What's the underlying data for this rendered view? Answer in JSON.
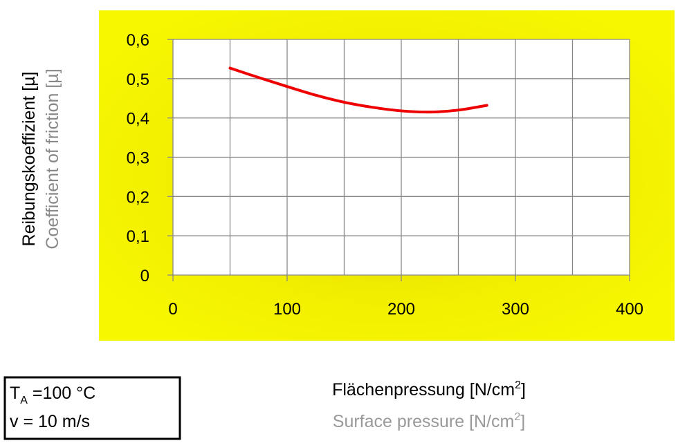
{
  "chart_data": {
    "type": "line",
    "x": [
      50,
      75,
      100,
      125,
      150,
      175,
      200,
      225,
      250,
      275
    ],
    "series": [
      {
        "name": "Reibungskoeffizient",
        "color": "#ee0000",
        "values": [
          0.527,
          0.503,
          0.48,
          0.458,
          0.44,
          0.427,
          0.418,
          0.415,
          0.42,
          0.432
        ]
      }
    ],
    "xlim": [
      0,
      400
    ],
    "xticks": [
      0,
      100,
      200,
      300,
      400
    ],
    "xminor": [
      50,
      150,
      250,
      350
    ],
    "ylim": [
      0,
      0.6
    ],
    "yticks": [
      0,
      {
        "value": 0.1,
        "label": "0,1"
      },
      {
        "value": 0.2,
        "label": "0,2"
      },
      {
        "value": 0.3,
        "label": "0,3"
      },
      {
        "value": 0.4,
        "label": "0,4"
      },
      {
        "value": 0.5,
        "label": "0,5"
      },
      {
        "value": 0.6,
        "label": "0,6"
      }
    ],
    "grid": true,
    "ylabel": "Reibungskoeffizient [µ]",
    "ylabel2": "Coefficient of friction [µ]",
    "xlabel": {
      "text": "Flächenpressung [N/cm",
      "sup": "2",
      "end": "]"
    },
    "xlabel2": {
      "text": "Surface pressure [N/cm",
      "sup": "2",
      "end": "]"
    },
    "conditions": [
      {
        "text": "T",
        "sub": "A",
        "end": " =100 °C"
      },
      {
        "text": "v = 10 m/s"
      }
    ]
  }
}
